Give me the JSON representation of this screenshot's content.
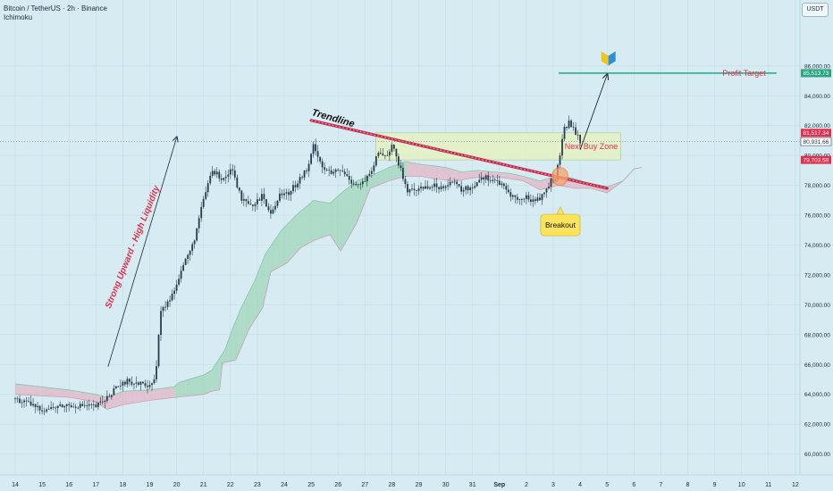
{
  "header": {
    "ticker": "Bitcoin / TetherUS · 2h · Binance",
    "indicator": "Ichimoku",
    "currency": "USDT"
  },
  "colors": {
    "background": "#d6ecf2",
    "candle": "#2a3a4a",
    "cloud_bull": "#9fd6b8",
    "cloud_bear": "#e2b5c6",
    "trendline": "#c2284c",
    "target_line": "#3fb89a",
    "zone_fill": "#e6f2c4",
    "label_red": "#e0304e",
    "label_green": "#2aa57f"
  },
  "chart_data": {
    "type": "candlestick",
    "symbol": "Bitcoin / TetherUS",
    "interval": "2h",
    "exchange": "Binance",
    "ylim": [
      59500,
      88500
    ],
    "y_ticks": [
      "60,000.00",
      "62,000.00",
      "64,000.00",
      "66,000.00",
      "68,000.00",
      "70,000.00",
      "72,000.00",
      "74,000.00",
      "76,000.00",
      "78,000.00",
      "80,000.00",
      "82,000.00",
      "84,000.00",
      "86,000.00"
    ],
    "y_tick_values": [
      60000,
      62000,
      64000,
      66000,
      68000,
      70000,
      72000,
      74000,
      76000,
      78000,
      80000,
      82000,
      84000,
      86000
    ],
    "x_ticks": [
      "14",
      "15",
      "16",
      "17",
      "18",
      "19",
      "20",
      "21",
      "22",
      "23",
      "24",
      "25",
      "26",
      "27",
      "28",
      "29",
      "30",
      "31",
      "Sep",
      "2",
      "3",
      "4",
      "5",
      "6",
      "7",
      "8",
      "9",
      "10",
      "11",
      "12"
    ],
    "x_tick_index": [
      0,
      1,
      2,
      3,
      4,
      5,
      6,
      7,
      8,
      9,
      10,
      11,
      12,
      13,
      14,
      15,
      16,
      17,
      18,
      19,
      20,
      21,
      22,
      23,
      24,
      25,
      26,
      27,
      28,
      29
    ],
    "price_path": [
      [
        0,
        63700
      ],
      [
        1,
        63000
      ],
      [
        2,
        63300
      ],
      [
        3,
        63200
      ],
      [
        3.3,
        63600
      ],
      [
        3.7,
        64300
      ],
      [
        4.2,
        64900
      ],
      [
        4.8,
        64600
      ],
      [
        5.2,
        64900
      ],
      [
        5.4,
        69500
      ],
      [
        5.8,
        70500
      ],
      [
        6.2,
        72500
      ],
      [
        6.6,
        74000
      ],
      [
        7.0,
        77000
      ],
      [
        7.3,
        79000
      ],
      [
        7.7,
        78500
      ],
      [
        8.1,
        79000
      ],
      [
        8.4,
        77000
      ],
      [
        8.8,
        76500
      ],
      [
        9.2,
        77300
      ],
      [
        9.5,
        76000
      ],
      [
        9.8,
        77400
      ],
      [
        10.2,
        77500
      ],
      [
        10.6,
        78500
      ],
      [
        10.9,
        79200
      ],
      [
        11.1,
        80800
      ],
      [
        11.4,
        79300
      ],
      [
        11.7,
        78800
      ],
      [
        12.1,
        79000
      ],
      [
        12.5,
        78300
      ],
      [
        12.8,
        78000
      ],
      [
        13.2,
        78700
      ],
      [
        13.5,
        80200
      ],
      [
        13.8,
        80000
      ],
      [
        14.0,
        80700
      ],
      [
        14.3,
        79200
      ],
      [
        14.6,
        77500
      ],
      [
        15.0,
        77800
      ],
      [
        15.4,
        78000
      ],
      [
        15.8,
        77900
      ],
      [
        16.2,
        78300
      ],
      [
        16.6,
        77700
      ],
      [
        17.0,
        77900
      ],
      [
        17.3,
        78600
      ],
      [
        17.6,
        78500
      ],
      [
        17.9,
        78300
      ],
      [
        18.3,
        77600
      ],
      [
        18.7,
        77000
      ],
      [
        19.0,
        77200
      ],
      [
        19.3,
        77000
      ],
      [
        19.6,
        77300
      ],
      [
        19.9,
        78300
      ],
      [
        20.1,
        78500
      ],
      [
        20.4,
        81700
      ],
      [
        20.6,
        82300
      ],
      [
        20.8,
        81500
      ],
      [
        21.0,
        81000
      ]
    ],
    "cloud_upper_path": [
      [
        0,
        64700
      ],
      [
        2,
        64300
      ],
      [
        3,
        64000
      ],
      [
        3.4,
        63800
      ],
      [
        4,
        64200
      ],
      [
        5,
        64300
      ],
      [
        5.9,
        64500
      ],
      [
        6.1,
        64800
      ],
      [
        7.0,
        65300
      ],
      [
        7.3,
        65600
      ],
      [
        7.8,
        67000
      ],
      [
        8.1,
        68500
      ],
      [
        8.4,
        69800
      ],
      [
        8.9,
        71600
      ],
      [
        9.3,
        73400
      ],
      [
        9.9,
        75000
      ],
      [
        10.5,
        76100
      ],
      [
        11.1,
        77000
      ],
      [
        11.7,
        76800
      ],
      [
        12.2,
        77600
      ],
      [
        12.7,
        78300
      ],
      [
        13.3,
        78700
      ],
      [
        13.9,
        79200
      ],
      [
        14.5,
        79600
      ],
      [
        15.1,
        79400
      ],
      [
        15.6,
        79300
      ],
      [
        16.0,
        79200
      ],
      [
        16.6,
        78900
      ],
      [
        17.2,
        79000
      ],
      [
        17.8,
        78900
      ],
      [
        18.4,
        78800
      ],
      [
        18.9,
        78600
      ],
      [
        19.5,
        78300
      ],
      [
        20.1,
        78600
      ],
      [
        20.7,
        78500
      ],
      [
        21.2,
        78200
      ],
      [
        22.0,
        77900
      ],
      [
        22.6,
        78300
      ],
      [
        23.0,
        79100
      ],
      [
        23.3,
        79200
      ]
    ],
    "cloud_lower_path": [
      [
        0,
        64000
      ],
      [
        2,
        63800
      ],
      [
        3,
        63500
      ],
      [
        3.4,
        63000
      ],
      [
        4,
        63300
      ],
      [
        5,
        63600
      ],
      [
        6,
        63800
      ],
      [
        7.0,
        64000
      ],
      [
        7.3,
        64200
      ],
      [
        7.6,
        64300
      ],
      [
        7.7,
        66100
      ],
      [
        8.2,
        66300
      ],
      [
        8.7,
        68400
      ],
      [
        9.2,
        69800
      ],
      [
        9.5,
        72200
      ],
      [
        10.1,
        72800
      ],
      [
        10.6,
        73800
      ],
      [
        11.1,
        74300
      ],
      [
        11.7,
        74700
      ],
      [
        12.1,
        73600
      ],
      [
        12.7,
        75500
      ],
      [
        13.2,
        77800
      ],
      [
        13.9,
        78300
      ],
      [
        14.5,
        78600
      ],
      [
        15.1,
        78600
      ],
      [
        15.7,
        78400
      ],
      [
        16.4,
        78300
      ],
      [
        17.0,
        78500
      ],
      [
        17.6,
        78600
      ],
      [
        18.2,
        78500
      ],
      [
        18.9,
        78300
      ],
      [
        19.5,
        77700
      ],
      [
        20.2,
        78000
      ],
      [
        20.8,
        77800
      ],
      [
        21.4,
        77800
      ],
      [
        22.0,
        77500
      ],
      [
        22.6,
        78300
      ],
      [
        23.0,
        79100
      ],
      [
        23.3,
        79200
      ]
    ],
    "horizontal_levels": [
      {
        "label": "81,517.34",
        "price": 81517.34,
        "tag_color": "#e0304e"
      },
      {
        "label": "80,931.66",
        "price": 80931.66,
        "tag_color": "#ffffff"
      },
      {
        "label": "79,703.59",
        "price": 79703.59,
        "tag_color": "#e0304e"
      },
      {
        "label": "85,513.73",
        "price": 85513.73,
        "tag_color": "#2aa57f"
      }
    ],
    "profit_target": {
      "price": 85513.73,
      "x_start": 20.2,
      "x_end": 28.3
    },
    "buy_zone": {
      "top": 81517.34,
      "bottom": 79703.59,
      "x_start": 13.4,
      "x_end": 22.5
    },
    "trendline": {
      "x1": 11.0,
      "y1": 82350,
      "x2": 22.0,
      "y2": 77800
    },
    "upward_arrow": {
      "x1": 3.45,
      "y1": 65850,
      "x2": 6.0,
      "y2": 81200
    },
    "target_arrow": {
      "x1": 21.0,
      "y1": 80380,
      "x2": 22.0,
      "y2": 85400
    },
    "breakout_circle": {
      "x": 20.25,
      "y": 78600
    }
  },
  "annotations": {
    "trendline_label": "Trendline",
    "upward_label": "Strong Upward - High Liquidity",
    "buy_zone_label": "Next Buy Zone",
    "profit_label": "Profit Target",
    "breakout_label": "Breakout"
  }
}
